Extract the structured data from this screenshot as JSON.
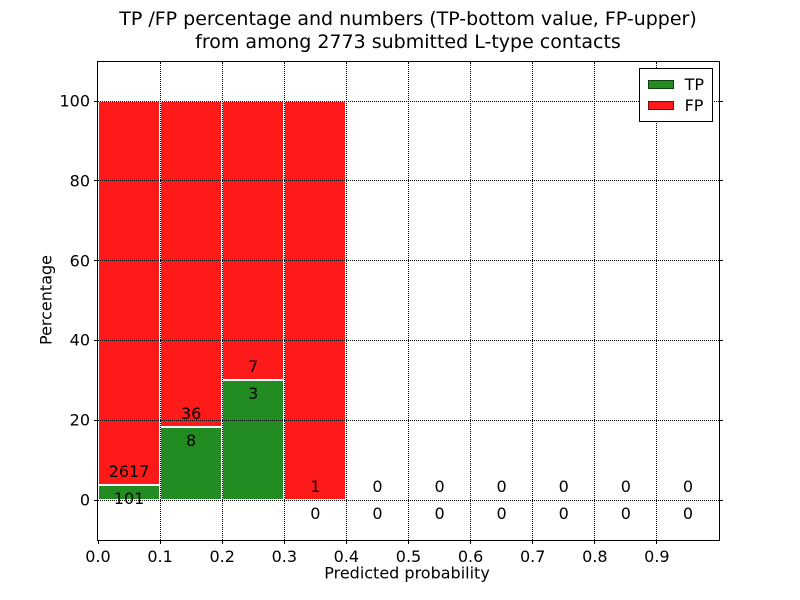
{
  "figure": {
    "title_line1": "TP /FP percentage and numbers (TP-bottom value, FP-upper)",
    "title_line2": "from among 2773 submitted L-type contacts"
  },
  "legend": [
    {
      "label": "TP",
      "color": "#228b22"
    },
    {
      "label": "FP",
      "color": "#ff1a1a"
    }
  ],
  "chart_data": {
    "type": "bar",
    "stacked": true,
    "normalized": "each non-empty bin stacks to 100%",
    "title": "TP /FP percentage and numbers (TP-bottom value, FP-upper) from among 2773 submitted L-type contacts",
    "xlabel": "Predicted probability",
    "ylabel": "Percentage",
    "total_contacts": 2773,
    "bin_edges": [
      0.0,
      0.1,
      0.2,
      0.3,
      0.4,
      0.5,
      0.6,
      0.7,
      0.8,
      0.9,
      1.0
    ],
    "series": [
      {
        "name": "TP",
        "color": "#228b22",
        "counts": [
          101,
          8,
          3,
          0,
          0,
          0,
          0,
          0,
          0,
          0
        ],
        "percents": [
          3.7,
          18.2,
          30.0,
          0,
          0,
          0,
          0,
          0,
          0,
          0
        ]
      },
      {
        "name": "FP",
        "color": "#ff1a1a",
        "counts": [
          2617,
          36,
          7,
          1,
          0,
          0,
          0,
          0,
          0,
          0
        ],
        "percents": [
          96.3,
          81.8,
          70.0,
          100.0,
          0,
          0,
          0,
          0,
          0,
          0
        ]
      }
    ],
    "annotation_rule": "FP count printed above segment boundary, TP count printed below it",
    "xticks": [
      0.0,
      0.1,
      0.2,
      0.3,
      0.4,
      0.5,
      0.6,
      0.7,
      0.8,
      0.9
    ],
    "yticks": [
      0,
      20,
      40,
      60,
      80,
      100
    ],
    "xlim": [
      0.0,
      1.0
    ],
    "ylim": [
      -10,
      110
    ],
    "grid": true,
    "grid_style": "dotted",
    "legend_position": "upper right"
  }
}
